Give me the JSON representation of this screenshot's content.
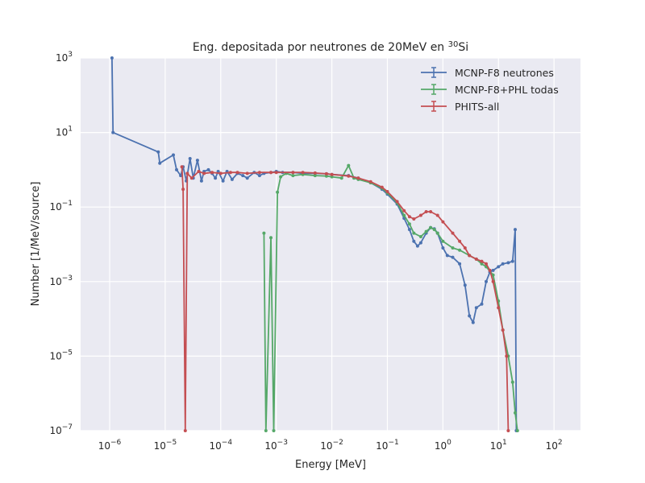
{
  "chart_data": {
    "type": "line",
    "title": "Eng. depositada por neutrones de 20MeV en ",
    "title_superscript": "30",
    "title_suffix": "Si",
    "xlabel": "Energy [MeV]",
    "ylabel": "Number [1/MeV/source]",
    "x_scale": "log",
    "y_scale": "log",
    "xlim": [
      3e-07,
      300
    ],
    "ylim": [
      1e-07,
      1000
    ],
    "x_ticks": [
      {
        "mantissa": "10",
        "exp": "−6",
        "value": 1e-06
      },
      {
        "mantissa": "10",
        "exp": "−5",
        "value": 1e-05
      },
      {
        "mantissa": "10",
        "exp": "−4",
        "value": 0.0001
      },
      {
        "mantissa": "10",
        "exp": "−3",
        "value": 0.001
      },
      {
        "mantissa": "10",
        "exp": "−2",
        "value": 0.01
      },
      {
        "mantissa": "10",
        "exp": "−1",
        "value": 0.1
      },
      {
        "mantissa": "10",
        "exp": "0",
        "value": 1
      },
      {
        "mantissa": "10",
        "exp": "1",
        "value": 10
      },
      {
        "mantissa": "10",
        "exp": "2",
        "value": 100
      }
    ],
    "y_ticks": [
      {
        "mantissa": "10",
        "exp": "−7",
        "value": 1e-07
      },
      {
        "mantissa": "10",
        "exp": "−5",
        "value": 1e-05
      },
      {
        "mantissa": "10",
        "exp": "−3",
        "value": 0.001
      },
      {
        "mantissa": "10",
        "exp": "−1",
        "value": 0.1
      },
      {
        "mantissa": "10",
        "exp": "1",
        "value": 10
      },
      {
        "mantissa": "10",
        "exp": "3",
        "value": 1000
      }
    ],
    "grid": true,
    "legend_position": "top-right",
    "series": [
      {
        "name": "MCNP-F8 neutrones",
        "color": "#4c72b0",
        "points": [
          [
            1.1e-06,
            1000
          ],
          [
            1.15e-06,
            10
          ],
          [
            7.5e-06,
            3.0
          ],
          [
            8e-06,
            1.5
          ],
          [
            1.4e-05,
            2.5
          ],
          [
            1.6e-05,
            1.0
          ],
          [
            1.9e-05,
            0.7
          ],
          [
            2.1e-05,
            1.2
          ],
          [
            2.4e-05,
            0.5
          ],
          [
            2.8e-05,
            2.0
          ],
          [
            3.2e-05,
            0.6
          ],
          [
            3.8e-05,
            1.8
          ],
          [
            4.5e-05,
            0.5
          ],
          [
            5e-05,
            0.9
          ],
          [
            6e-05,
            1.0
          ],
          [
            7e-05,
            0.8
          ],
          [
            8e-05,
            0.6
          ],
          [
            9e-05,
            0.9
          ],
          [
            0.00011,
            0.5
          ],
          [
            0.00013,
            0.9
          ],
          [
            0.00016,
            0.55
          ],
          [
            0.0002,
            0.8
          ],
          [
            0.00025,
            0.7
          ],
          [
            0.0003,
            0.6
          ],
          [
            0.0004,
            0.85
          ],
          [
            0.0005,
            0.7
          ],
          [
            0.0006,
            0.8
          ],
          [
            0.0008,
            0.85
          ],
          [
            0.001,
            0.9
          ],
          [
            0.0013,
            0.85
          ],
          [
            0.002,
            0.85
          ],
          [
            0.003,
            0.8
          ],
          [
            0.005,
            0.8
          ],
          [
            0.008,
            0.78
          ],
          [
            0.01,
            0.75
          ],
          [
            0.02,
            0.7
          ],
          [
            0.03,
            0.6
          ],
          [
            0.05,
            0.45
          ],
          [
            0.08,
            0.3
          ],
          [
            0.1,
            0.22
          ],
          [
            0.15,
            0.12
          ],
          [
            0.2,
            0.05
          ],
          [
            0.25,
            0.025
          ],
          [
            0.3,
            0.012
          ],
          [
            0.35,
            0.009
          ],
          [
            0.4,
            0.011
          ],
          [
            0.5,
            0.02
          ],
          [
            0.6,
            0.028
          ],
          [
            0.7,
            0.026
          ],
          [
            0.8,
            0.02
          ],
          [
            1.0,
            0.008
          ],
          [
            1.2,
            0.005
          ],
          [
            1.5,
            0.0045
          ],
          [
            2.0,
            0.003
          ],
          [
            2.5,
            0.0008
          ],
          [
            3.0,
            0.00012
          ],
          [
            3.5,
            8e-05
          ],
          [
            4.0,
            0.0002
          ],
          [
            5.0,
            0.00025
          ],
          [
            6.0,
            0.001
          ],
          [
            7.0,
            0.0018
          ],
          [
            8.0,
            0.002
          ],
          [
            10,
            0.0025
          ],
          [
            12,
            0.003
          ],
          [
            15,
            0.0032
          ],
          [
            18,
            0.0035
          ],
          [
            20,
            0.025
          ],
          [
            21,
            1e-07
          ]
        ]
      },
      {
        "name": "MCNP-F8+PHL todas",
        "color": "#55a868",
        "points": [
          [
            0.0006,
            0.02
          ],
          [
            0.00065,
            1e-07
          ],
          [
            0.0008,
            0.015
          ],
          [
            0.0009,
            1e-07
          ],
          [
            0.00105,
            0.25
          ],
          [
            0.0012,
            0.65
          ],
          [
            0.0015,
            0.8
          ],
          [
            0.002,
            0.7
          ],
          [
            0.003,
            0.75
          ],
          [
            0.005,
            0.7
          ],
          [
            0.008,
            0.68
          ],
          [
            0.01,
            0.65
          ],
          [
            0.015,
            0.6
          ],
          [
            0.02,
            1.3
          ],
          [
            0.025,
            0.6
          ],
          [
            0.03,
            0.55
          ],
          [
            0.05,
            0.45
          ],
          [
            0.08,
            0.32
          ],
          [
            0.1,
            0.24
          ],
          [
            0.15,
            0.13
          ],
          [
            0.2,
            0.06
          ],
          [
            0.25,
            0.035
          ],
          [
            0.3,
            0.02
          ],
          [
            0.4,
            0.016
          ],
          [
            0.5,
            0.022
          ],
          [
            0.6,
            0.028
          ],
          [
            0.7,
            0.025
          ],
          [
            0.8,
            0.02
          ],
          [
            1.0,
            0.012
          ],
          [
            1.5,
            0.008
          ],
          [
            2.0,
            0.007
          ],
          [
            3.0,
            0.005
          ],
          [
            4.0,
            0.004
          ],
          [
            5.0,
            0.003
          ],
          [
            6.0,
            0.0025
          ],
          [
            8.0,
            0.0015
          ],
          [
            10,
            0.0003
          ],
          [
            12,
            5e-05
          ],
          [
            15,
            1e-05
          ],
          [
            18,
            2e-06
          ],
          [
            20,
            3e-07
          ],
          [
            22,
            1e-07
          ]
        ]
      },
      {
        "name": "PHITS-all",
        "color": "#c44e52",
        "points": [
          [
            2e-05,
            1.2
          ],
          [
            2.1e-05,
            0.3
          ],
          [
            2.3e-05,
            1e-07
          ],
          [
            2.5e-05,
            0.8
          ],
          [
            3e-05,
            0.6
          ],
          [
            4e-05,
            0.9
          ],
          [
            5e-05,
            0.8
          ],
          [
            7e-05,
            0.85
          ],
          [
            0.0001,
            0.8
          ],
          [
            0.00015,
            0.85
          ],
          [
            0.0002,
            0.85
          ],
          [
            0.0003,
            0.8
          ],
          [
            0.0005,
            0.85
          ],
          [
            0.0008,
            0.85
          ],
          [
            0.001,
            0.85
          ],
          [
            0.002,
            0.85
          ],
          [
            0.003,
            0.85
          ],
          [
            0.005,
            0.82
          ],
          [
            0.008,
            0.78
          ],
          [
            0.01,
            0.75
          ],
          [
            0.02,
            0.68
          ],
          [
            0.03,
            0.6
          ],
          [
            0.05,
            0.48
          ],
          [
            0.08,
            0.34
          ],
          [
            0.1,
            0.26
          ],
          [
            0.15,
            0.14
          ],
          [
            0.2,
            0.08
          ],
          [
            0.25,
            0.055
          ],
          [
            0.3,
            0.048
          ],
          [
            0.4,
            0.06
          ],
          [
            0.5,
            0.075
          ],
          [
            0.6,
            0.075
          ],
          [
            0.8,
            0.06
          ],
          [
            1.0,
            0.04
          ],
          [
            1.5,
            0.02
          ],
          [
            2.0,
            0.012
          ],
          [
            2.5,
            0.008
          ],
          [
            3.0,
            0.005
          ],
          [
            4.0,
            0.004
          ],
          [
            5.0,
            0.0035
          ],
          [
            6.0,
            0.003
          ],
          [
            7.0,
            0.002
          ],
          [
            8.0,
            0.001
          ],
          [
            10,
            0.0002
          ],
          [
            12,
            5e-05
          ],
          [
            14,
            1e-05
          ],
          [
            15,
            1e-07
          ]
        ]
      }
    ]
  }
}
